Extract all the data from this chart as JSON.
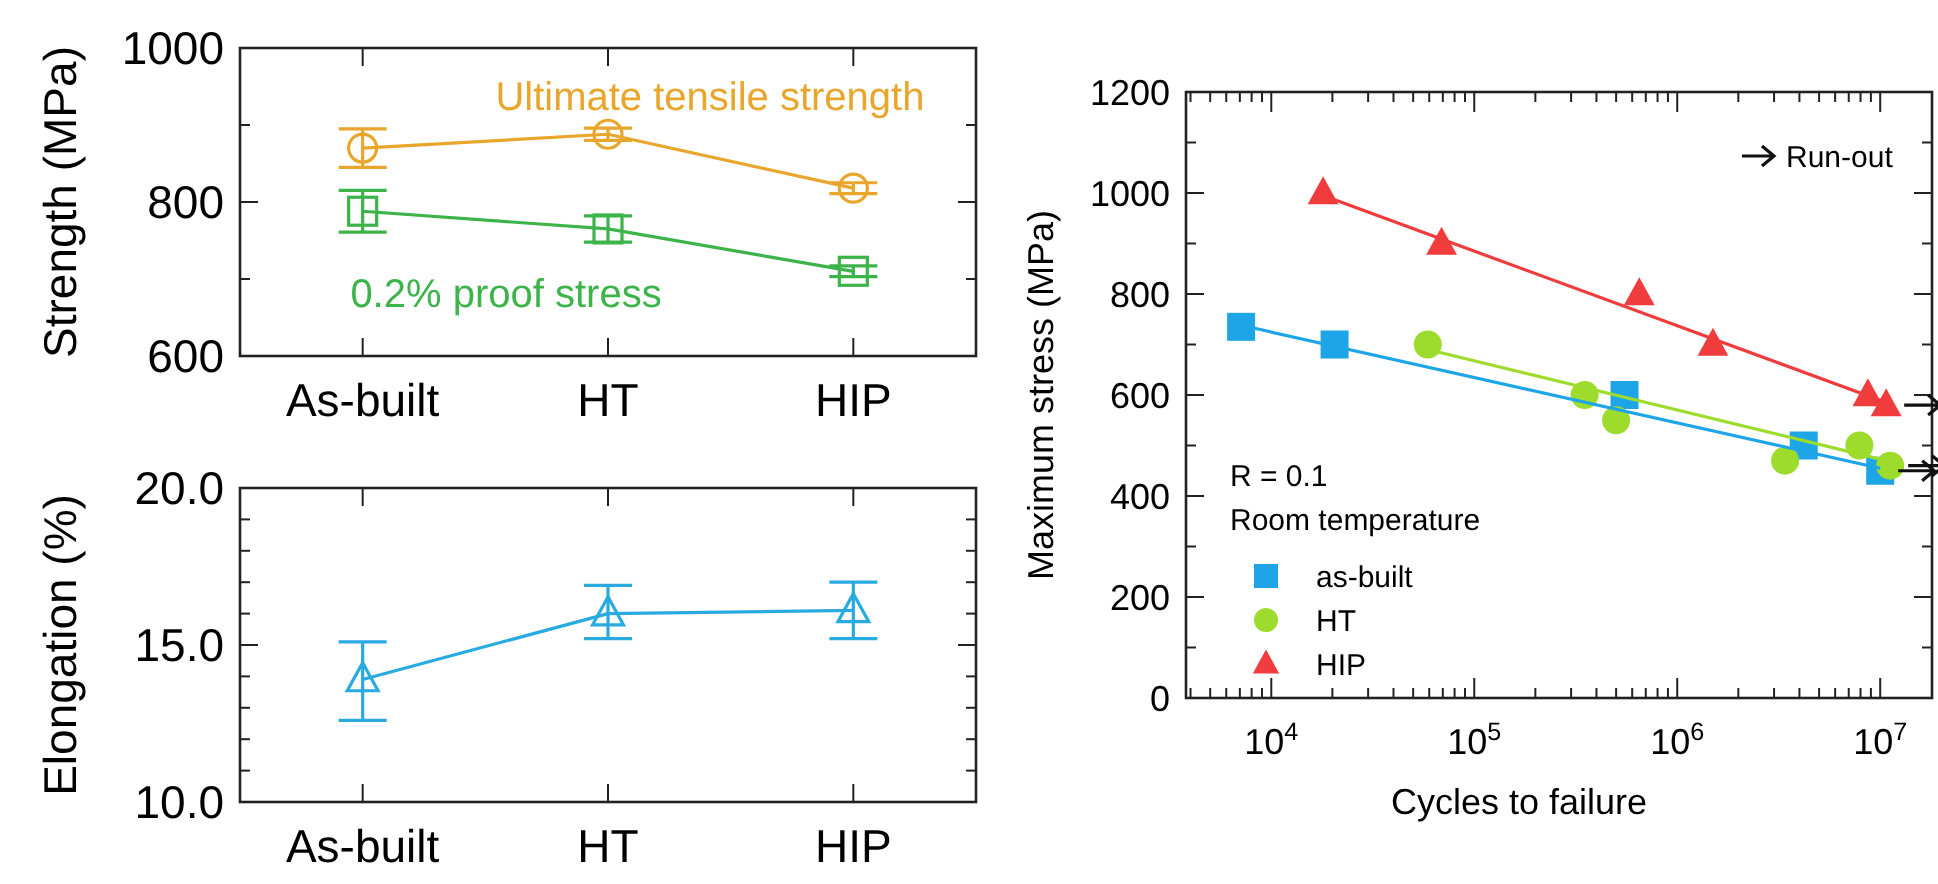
{
  "chart_data": [
    {
      "type": "line",
      "ylabel": "Strength (MPa)",
      "categories": [
        "As-built",
        "HT",
        "HIP"
      ],
      "ylim": [
        600,
        1000
      ],
      "yticks": [
        600,
        {
          "value": 700,
          "label": null
        },
        800,
        {
          "value": 900,
          "label": null
        },
        1000
      ],
      "grid": false,
      "legend": false,
      "line_style": "solid",
      "series": [
        {
          "name": "Ultimate tensile strength",
          "color": "#e9a62c",
          "marker": "circle",
          "values": [
            870,
            888,
            818
          ],
          "errors": [
            25,
            8,
            7
          ]
        },
        {
          "name": "0.2% proof stress",
          "color": "#3cb44a",
          "marker": "square",
          "values": [
            788,
            765,
            710
          ],
          "errors": [
            27,
            17,
            7
          ]
        }
      ]
    },
    {
      "type": "line",
      "ylabel": "Elongation (%)",
      "categories": [
        "As-built",
        "HT",
        "HIP"
      ],
      "ylim": [
        10,
        20
      ],
      "yticks": [
        {
          "value": 10,
          "label": "10.0"
        },
        {
          "value": 11,
          "label": null
        },
        {
          "value": 12,
          "label": null
        },
        {
          "value": 13,
          "label": null
        },
        {
          "value": 14,
          "label": null
        },
        {
          "value": 15,
          "label": "15.0"
        },
        {
          "value": 16,
          "label": null
        },
        {
          "value": 17,
          "label": null
        },
        {
          "value": 18,
          "label": null
        },
        {
          "value": 19,
          "label": null
        },
        {
          "value": 20,
          "label": "20.0"
        }
      ],
      "grid": false,
      "legend": false,
      "line_style": "solid",
      "series": [
        {
          "color": "#29abe2",
          "marker": "triangle",
          "values": [
            13.9,
            16.0,
            16.1
          ],
          "errors": [
            [
              12.6,
              15.1
            ],
            [
              15.2,
              16.9
            ],
            [
              15.2,
              17.0
            ]
          ]
        }
      ]
    },
    {
      "type": "scatter",
      "xlabel": "Cycles to failure",
      "ylabel": "Maximum stress (MPa)",
      "log": "x",
      "xlim": [
        3800,
        18000000
      ],
      "ylim": [
        0,
        1200
      ],
      "xticks": [
        {
          "value": 4000,
          "label": null
        },
        {
          "value": 5000,
          "label": null
        },
        {
          "value": 6000,
          "label": null
        },
        {
          "value": 7000,
          "label": null
        },
        {
          "value": 8000,
          "label": null
        },
        {
          "value": 9000,
          "label": null
        },
        {
          "value": 10000,
          "label": "10$^{4}$"
        },
        {
          "value": 20000,
          "label": null
        },
        {
          "value": 30000,
          "label": null
        },
        {
          "value": 40000,
          "label": null
        },
        {
          "value": 50000,
          "label": null
        },
        {
          "value": 60000,
          "label": null
        },
        {
          "value": 70000,
          "label": null
        },
        {
          "value": 80000,
          "label": null
        },
        {
          "value": 90000,
          "label": null
        },
        {
          "value": 100000,
          "label": "10$^{5}$"
        },
        {
          "value": 200000,
          "label": null
        },
        {
          "value": 300000,
          "label": null
        },
        {
          "value": 400000,
          "label": null
        },
        {
          "value": 500000,
          "label": null
        },
        {
          "value": 600000,
          "label": null
        },
        {
          "value": 700000,
          "label": null
        },
        {
          "value": 800000,
          "label": null
        },
        {
          "value": 900000,
          "label": null
        },
        {
          "value": 1000000,
          "label": "10$^{6}$"
        },
        {
          "value": 2000000,
          "label": null
        },
        {
          "value": 3000000,
          "label": null
        },
        {
          "value": 4000000,
          "label": null
        },
        {
          "value": 5000000,
          "label": null
        },
        {
          "value": 6000000,
          "label": null
        },
        {
          "value": 7000000,
          "label": null
        },
        {
          "value": 8000000,
          "label": null
        },
        {
          "value": 9000000,
          "label": null
        },
        {
          "value": 10000000,
          "label": "10$^{7}$"
        }
      ],
      "yticks": [
        0,
        {
          "value": 100,
          "label": null
        },
        200,
        {
          "value": 300,
          "label": null
        },
        400,
        {
          "value": 500,
          "label": null
        },
        600,
        {
          "value": 700,
          "label": null
        },
        800,
        {
          "value": 900,
          "label": null
        },
        1000,
        {
          "value": 1100,
          "label": null
        },
        1200
      ],
      "grid": false,
      "legend": "bottom left",
      "annotations": [
        "Run-out",
        "R = 0.1",
        "Room temperature"
      ],
      "series": [
        {
          "name": "as-built",
          "color": "#1ea5e8",
          "marker": "square",
          "x": [
            7100,
            20500,
            550000,
            4200000,
            10000000
          ],
          "values": [
            735,
            700,
            600,
            500,
            450
          ]
        },
        {
          "name": "HT",
          "color": "#9ddc2c",
          "marker": "circle",
          "x": [
            59000,
            350000,
            500000,
            3400000,
            7900000,
            11200000
          ],
          "values": [
            700,
            600,
            550,
            470,
            500,
            460
          ]
        },
        {
          "name": "HIP",
          "color": "#f03c3c",
          "marker": "triangle",
          "x": [
            18000,
            69000,
            650000,
            1500000,
            8700000,
            10700000
          ],
          "values": [
            1000,
            900,
            800,
            700,
            600,
            580
          ]
        },
        {
          "type": "line",
          "color": "#1ea5e8",
          "x": [
            7100,
            10000000
          ],
          "values": [
            738,
            455
          ]
        },
        {
          "type": "line",
          "color": "#9ddc2c",
          "x": [
            59000,
            11200000
          ],
          "values": [
            690,
            468
          ]
        },
        {
          "type": "line",
          "color": "#f03c3c",
          "x": [
            18000,
            10700000
          ],
          "values": [
            995,
            585
          ]
        }
      ]
    }
  ]
}
